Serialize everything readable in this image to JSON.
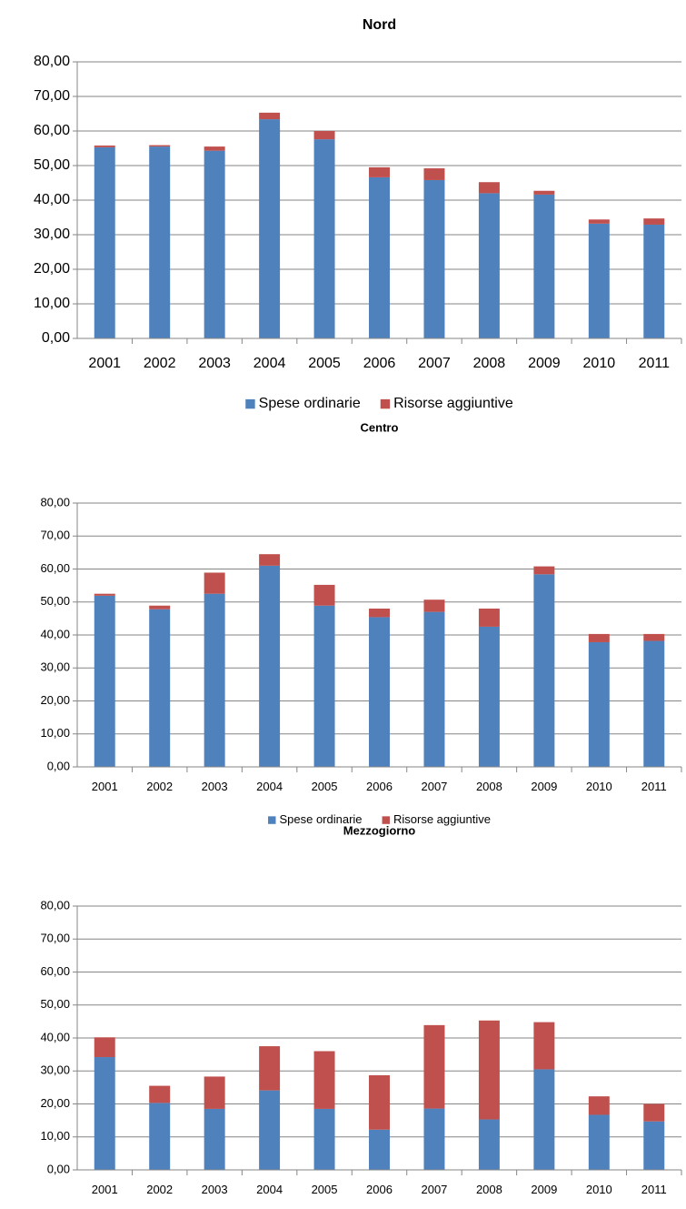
{
  "chart_data": [
    {
      "type": "bar",
      "stacked": true,
      "title": "Nord",
      "categories": [
        "2001",
        "2002",
        "2003",
        "2004",
        "2005",
        "2006",
        "2007",
        "2008",
        "2009",
        "2010",
        "2011"
      ],
      "series": [
        {
          "name": "Spese ordinarie",
          "color": "#4f81bd",
          "values": [
            55.3,
            55.5,
            54.3,
            63.4,
            57.6,
            46.6,
            45.8,
            42.0,
            41.6,
            33.2,
            32.9
          ]
        },
        {
          "name": "Risorse aggiuntive",
          "color": "#c0504d",
          "values": [
            0.5,
            0.4,
            1.2,
            1.9,
            2.4,
            2.9,
            3.4,
            3.2,
            1.1,
            1.2,
            1.8
          ]
        }
      ],
      "ylim": [
        0,
        80
      ],
      "yticks": [
        {
          "value": 0,
          "label": "0,00"
        },
        {
          "value": 10,
          "label": "10,00"
        },
        {
          "value": 20,
          "label": "20,00"
        },
        {
          "value": 30,
          "label": "30,00"
        },
        {
          "value": 40,
          "label": "40,00"
        },
        {
          "value": 50,
          "label": "50,00"
        },
        {
          "value": 60,
          "label": "60,00"
        },
        {
          "value": 70,
          "label": "70,00"
        },
        {
          "value": 80,
          "label": "80,00"
        }
      ],
      "grid": true,
      "legend": "bottom"
    },
    {
      "type": "bar",
      "stacked": true,
      "title": "Centro",
      "categories": [
        "2001",
        "2002",
        "2003",
        "2004",
        "2005",
        "2006",
        "2007",
        "2008",
        "2009",
        "2010",
        "2011"
      ],
      "series": [
        {
          "name": "Spese ordinarie",
          "color": "#4f81bd",
          "values": [
            51.9,
            47.8,
            52.5,
            61.0,
            48.9,
            45.4,
            47.0,
            42.5,
            58.4,
            37.8,
            38.2
          ]
        },
        {
          "name": "Risorse aggiuntive",
          "color": "#c0504d",
          "values": [
            0.6,
            1.1,
            6.4,
            3.5,
            6.3,
            2.6,
            3.7,
            5.5,
            2.4,
            2.5,
            2.1
          ]
        }
      ],
      "ylim": [
        0,
        80
      ],
      "yticks": [
        {
          "value": 0,
          "label": "0,00"
        },
        {
          "value": 10,
          "label": "10,00"
        },
        {
          "value": 20,
          "label": "20,00"
        },
        {
          "value": 30,
          "label": "30,00"
        },
        {
          "value": 40,
          "label": "40,00"
        },
        {
          "value": 50,
          "label": "50,00"
        },
        {
          "value": 60,
          "label": "60,00"
        },
        {
          "value": 70,
          "label": "70,00"
        },
        {
          "value": 80,
          "label": "80,00"
        }
      ],
      "grid": true,
      "legend": "bottom"
    },
    {
      "type": "bar",
      "stacked": true,
      "title": "Mezzogiorno",
      "categories": [
        "2001",
        "2002",
        "2003",
        "2004",
        "2005",
        "2006",
        "2007",
        "2008",
        "2009",
        "2010",
        "2011"
      ],
      "series": [
        {
          "name": "Spese ordinarie",
          "color": "#4f81bd",
          "values": [
            34.2,
            20.3,
            18.5,
            24.1,
            18.5,
            12.2,
            18.6,
            15.3,
            30.5,
            16.7,
            14.7
          ]
        },
        {
          "name": "Risorse aggiuntive",
          "color": "#c0504d",
          "values": [
            6.0,
            5.2,
            9.8,
            13.4,
            17.5,
            16.5,
            25.3,
            30.0,
            14.3,
            5.6,
            5.3
          ]
        }
      ],
      "ylim": [
        0,
        80
      ],
      "yticks": [
        {
          "value": 0,
          "label": "0,00"
        },
        {
          "value": 10,
          "label": "10,00"
        },
        {
          "value": 20,
          "label": "20,00"
        },
        {
          "value": 30,
          "label": "30,00"
        },
        {
          "value": 40,
          "label": "40,00"
        },
        {
          "value": 50,
          "label": "50,00"
        },
        {
          "value": 60,
          "label": "60,00"
        },
        {
          "value": 70,
          "label": "70,00"
        },
        {
          "value": 80,
          "label": "80,00"
        }
      ],
      "grid": true,
      "legend": "bottom"
    }
  ]
}
